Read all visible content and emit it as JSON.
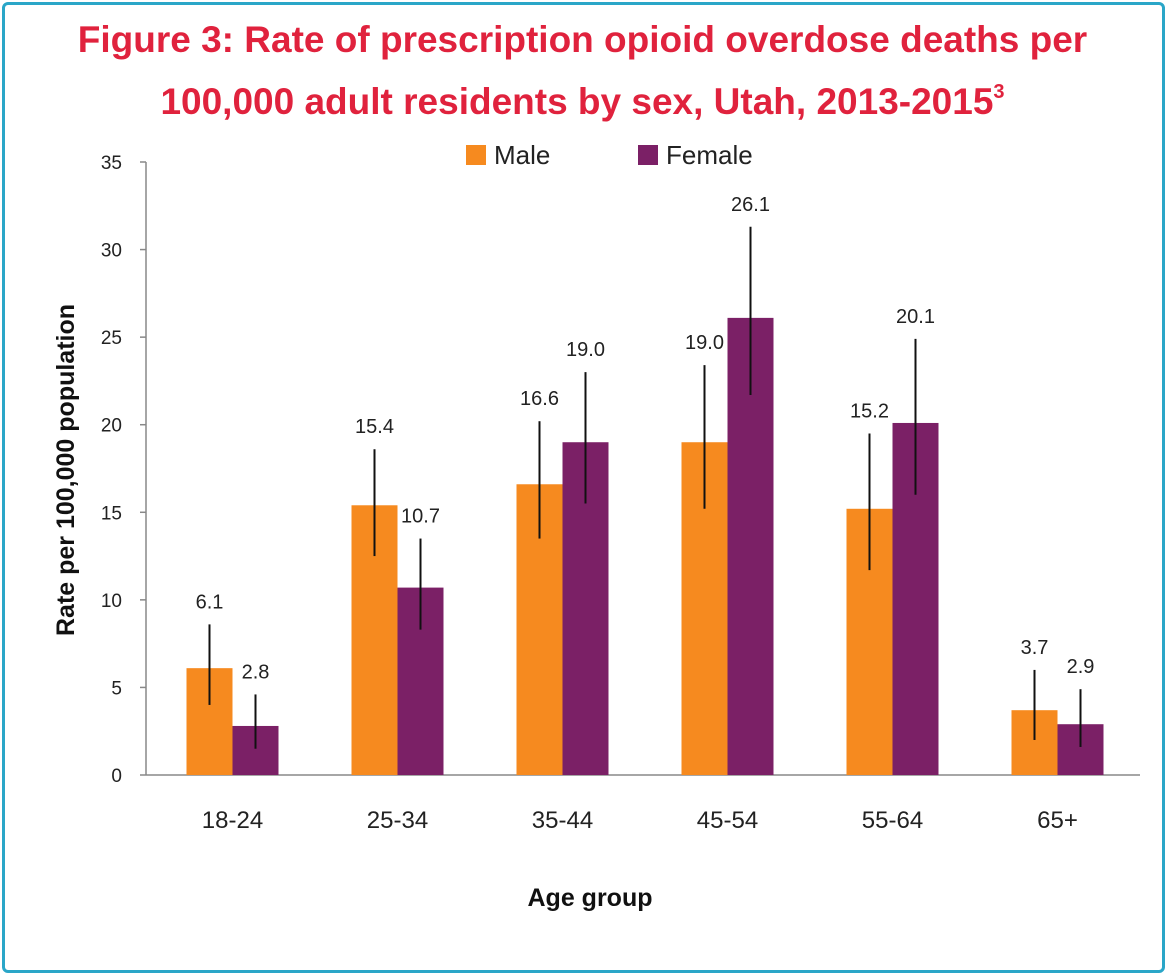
{
  "chart_data": {
    "type": "bar",
    "title_line1": "Figure 3: Rate of prescription opioid overdose deaths per",
    "title_line2": "100,000 adult residents by sex, Utah, 2013-2015",
    "title_superscript": "3",
    "xlabel": "Age group",
    "ylabel": "Rate per 100,000 population",
    "ylim": [
      0,
      35
    ],
    "yticks": [
      0,
      5,
      10,
      15,
      20,
      25,
      30,
      35
    ],
    "grid": false,
    "legend_position": "top",
    "categories": [
      "18-24",
      "25-34",
      "35-44",
      "45-54",
      "55-64",
      "65+"
    ],
    "series": [
      {
        "name": "Male",
        "color": "#f68a1f",
        "values": [
          6.1,
          15.4,
          16.6,
          19.0,
          15.2,
          3.7
        ],
        "labels": [
          "6.1",
          "15.4",
          "16.6",
          "19.0",
          "15.2",
          "3.7"
        ],
        "ci_low": [
          4.0,
          12.5,
          13.5,
          15.2,
          11.7,
          2.0
        ],
        "ci_high": [
          8.6,
          18.6,
          20.2,
          23.4,
          19.5,
          6.0
        ]
      },
      {
        "name": "Female",
        "color": "#7b2066",
        "values": [
          2.8,
          10.7,
          19.0,
          26.1,
          20.1,
          2.9
        ],
        "labels": [
          "2.8",
          "10.7",
          "19.0",
          "26.1",
          "20.1",
          "2.9"
        ],
        "ci_low": [
          1.5,
          8.3,
          15.5,
          21.7,
          16.0,
          1.6
        ],
        "ci_high": [
          4.6,
          13.5,
          23.0,
          31.3,
          24.9,
          4.9
        ]
      }
    ]
  }
}
